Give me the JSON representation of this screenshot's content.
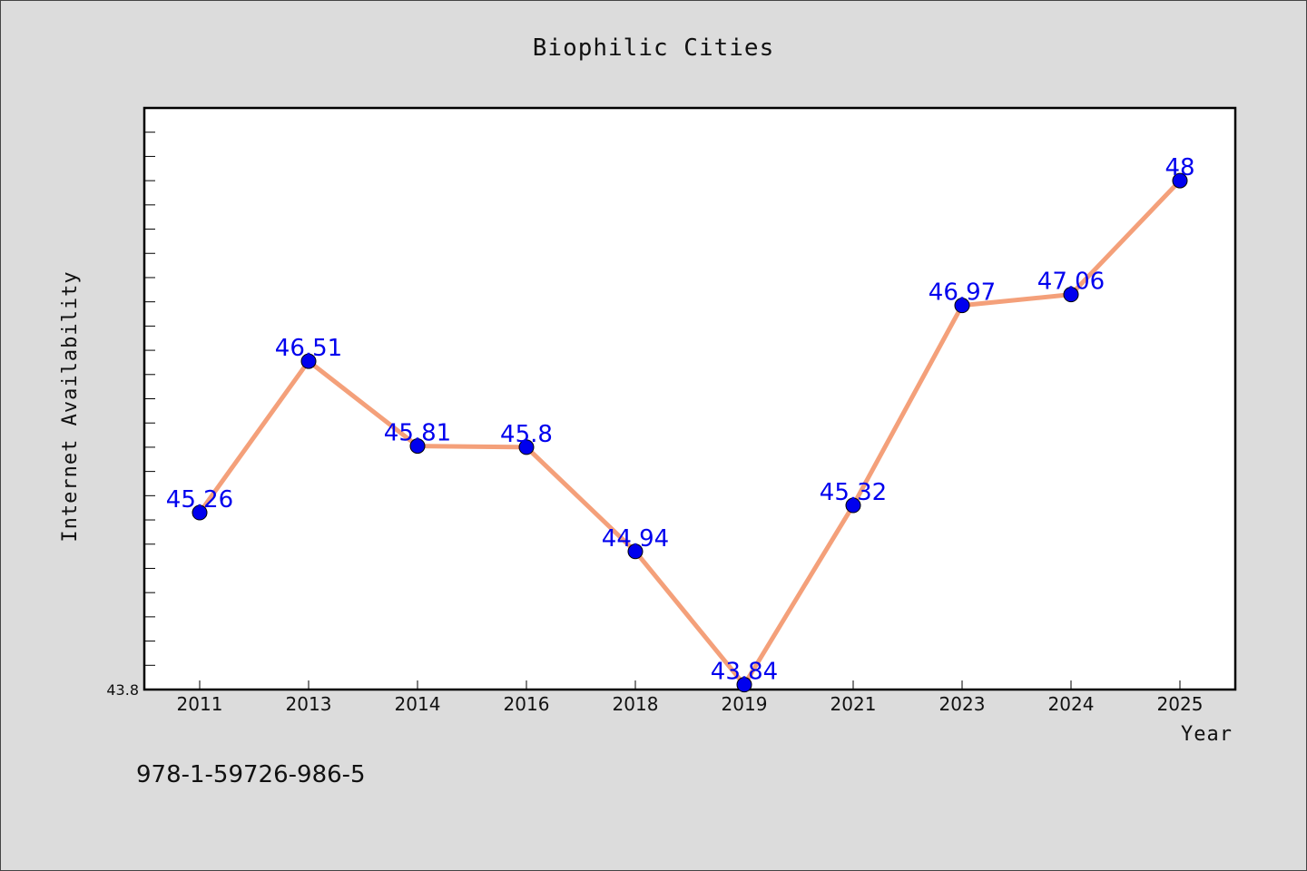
{
  "chart_data": {
    "type": "line",
    "title": "Biophilic Cities",
    "xlabel": "Year",
    "ylabel": "Internet Availability",
    "categories": [
      "2011",
      "2013",
      "2014",
      "2016",
      "2018",
      "2019",
      "2021",
      "2023",
      "2024",
      "2025"
    ],
    "series": [
      {
        "values": [
          45.26,
          46.51,
          45.81,
          45.8,
          44.94,
          43.84,
          45.32,
          46.97,
          47.06,
          48
        ]
      }
    ],
    "ylim": [
      43.8,
      48.6
    ],
    "y_min_label": "43.8",
    "line_color": "#f4a07a",
    "marker_color": "#0000ee",
    "label_color": "#0000ee",
    "grid": false,
    "legend": "none"
  },
  "footer": {
    "isbn": "978-1-59726-986-5"
  }
}
